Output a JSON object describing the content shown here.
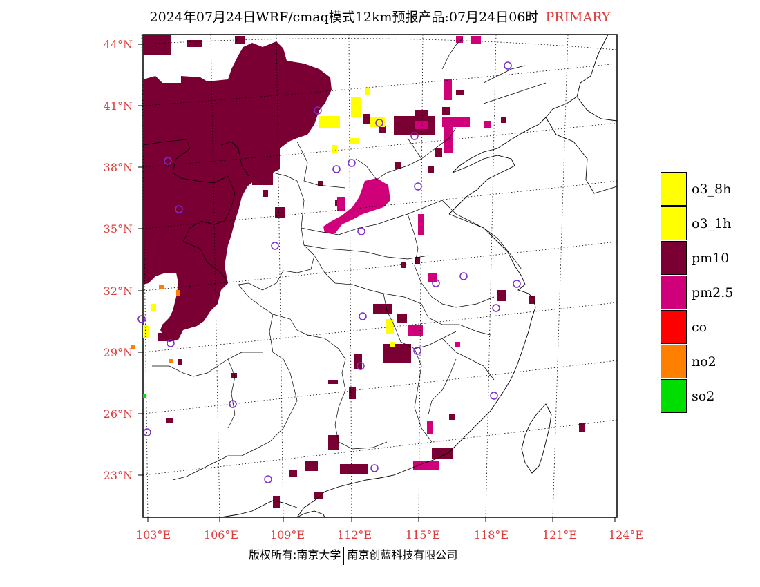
{
  "title": {
    "main": "2024年07月24日WRF/cmaq模式12km预报产品:07月24日06时",
    "product": "PRIMARY"
  },
  "axes": {
    "lat_labels": [
      "44°N",
      "41°N",
      "38°N",
      "35°N",
      "32°N",
      "29°N",
      "26°N",
      "23°N"
    ],
    "lon_labels": [
      "103°E",
      "106°E",
      "109°E",
      "112°E",
      "115°E",
      "118°E",
      "121°E",
      "124°E"
    ],
    "label_color": "#e03a3a"
  },
  "legend": [
    {
      "label": "o3_8h",
      "color": "#ffff00"
    },
    {
      "label": "o3_1h",
      "color": "#ffff00"
    },
    {
      "label": "pm10",
      "color": "#7a0033"
    },
    {
      "label": "pm2.5",
      "color": "#d0007a"
    },
    {
      "label": "co",
      "color": "#ff0000"
    },
    {
      "label": "no2",
      "color": "#ff8000"
    },
    {
      "label": "so2",
      "color": "#00dd00"
    }
  ],
  "credit": {
    "left": "版权所有:南京大学",
    "right": "南京创蓝科技有限公司"
  },
  "colors": {
    "pm10": "#7a0033",
    "pm25": "#d0007a",
    "o3": "#ffff00",
    "no2": "#ff8000",
    "so2": "#00dd00",
    "station": "#7a2ad0"
  }
}
